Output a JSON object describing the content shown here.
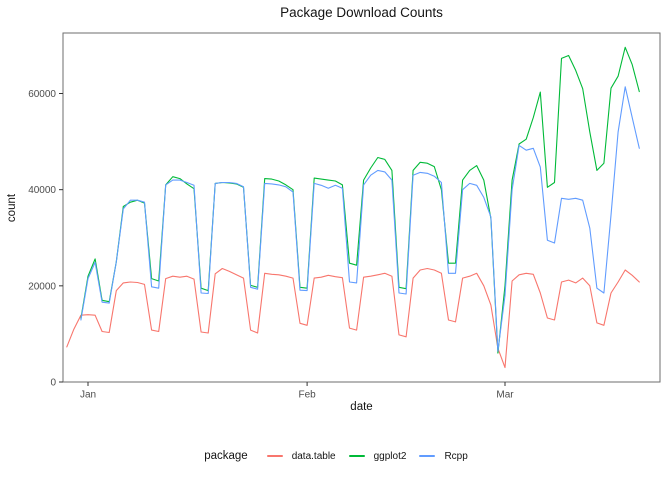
{
  "chart_data": {
    "type": "line",
    "title": "Package Download Counts",
    "xlabel": "date",
    "ylabel": "count",
    "legend_title": "package",
    "legend_position": "bottom",
    "grid": false,
    "x_ticks": [
      {
        "label": "Jan",
        "day": 0
      },
      {
        "label": "Feb",
        "day": 31
      },
      {
        "label": "Mar",
        "day": 59
      }
    ],
    "y_ticks": [
      {
        "label": "0",
        "value": 0
      },
      {
        "label": "20000",
        "value": 20000
      },
      {
        "label": "40000",
        "value": 40000
      },
      {
        "label": "60000",
        "value": 60000
      }
    ],
    "ylim": [
      0,
      72600
    ],
    "x_unit": "daily points; day 0 = Jan tick",
    "series": [
      {
        "name": "data.table",
        "color": "#F8766D",
        "start_day": -3,
        "daily_values": [
          7300,
          11000,
          13900,
          14000,
          13900,
          10500,
          10300,
          19000,
          20600,
          20800,
          20700,
          20300,
          10800,
          10500,
          21500,
          22000,
          21800,
          22000,
          21400,
          10400,
          10200,
          22500,
          23600,
          23000,
          22300,
          21600,
          10800,
          10200,
          22600,
          22400,
          22300,
          22000,
          21600,
          12200,
          11800,
          21600,
          21800,
          22200,
          21900,
          21700,
          11200,
          10800,
          21800,
          22000,
          22300,
          22600,
          22000,
          9800,
          9400,
          21600,
          23300,
          23600,
          23300,
          22600,
          12900,
          12500,
          21600,
          22000,
          22600,
          20000,
          16000,
          7000,
          3000,
          21000,
          22300,
          22600,
          22400,
          18500,
          13300,
          12900,
          20800,
          21200,
          20600,
          21600,
          20000,
          12300,
          11800,
          18500,
          20800,
          23300,
          22200,
          20800
        ]
      },
      {
        "name": "ggplot2",
        "color": "#00BA38",
        "start_day": -1,
        "daily_values": [
          13200,
          22000,
          25600,
          17000,
          16700,
          25000,
          36500,
          37400,
          37800,
          37200,
          21500,
          21000,
          41000,
          42700,
          42300,
          41200,
          40200,
          19500,
          19000,
          41300,
          41500,
          41400,
          41200,
          40500,
          20100,
          19700,
          42300,
          42200,
          41800,
          41000,
          40000,
          19700,
          19500,
          42400,
          42200,
          42000,
          41800,
          41000,
          24700,
          24300,
          42000,
          44500,
          46700,
          46300,
          44000,
          19700,
          19400,
          44000,
          45700,
          45500,
          44800,
          40000,
          24700,
          24700,
          42000,
          44000,
          45000,
          42000,
          34000,
          6000,
          20000,
          42000,
          49500,
          50500,
          55000,
          60300,
          40500,
          41500,
          67300,
          67900,
          64800,
          61000,
          52000,
          44000,
          45500,
          61100,
          63600,
          69600,
          66000,
          60400
        ]
      },
      {
        "name": "Rcpp",
        "color": "#619CFF",
        "start_day": -1,
        "daily_values": [
          12900,
          21500,
          24900,
          16600,
          16400,
          25000,
          36000,
          37800,
          37800,
          37400,
          19800,
          19500,
          41000,
          42000,
          42000,
          41500,
          40900,
          18500,
          18400,
          41300,
          41500,
          41500,
          41300,
          40600,
          19700,
          19300,
          41300,
          41200,
          41000,
          40600,
          39500,
          19100,
          19000,
          41300,
          40900,
          40300,
          40900,
          40300,
          20800,
          20600,
          41000,
          43000,
          44000,
          43700,
          42000,
          18500,
          18300,
          43000,
          43600,
          43400,
          42800,
          41500,
          22600,
          22600,
          40000,
          41300,
          40900,
          38400,
          34300,
          6400,
          18000,
          40000,
          49200,
          48200,
          48600,
          44700,
          29500,
          28900,
          38200,
          38000,
          38200,
          37800,
          32000,
          19500,
          18500,
          34700,
          52000,
          61400,
          55000,
          48600
        ]
      }
    ]
  },
  "colors": {
    "background": "#ffffff",
    "panel_border": "#6e6e6e",
    "tick": "#333333",
    "tick_label": "#4d4d4d",
    "text": "#141414"
  }
}
